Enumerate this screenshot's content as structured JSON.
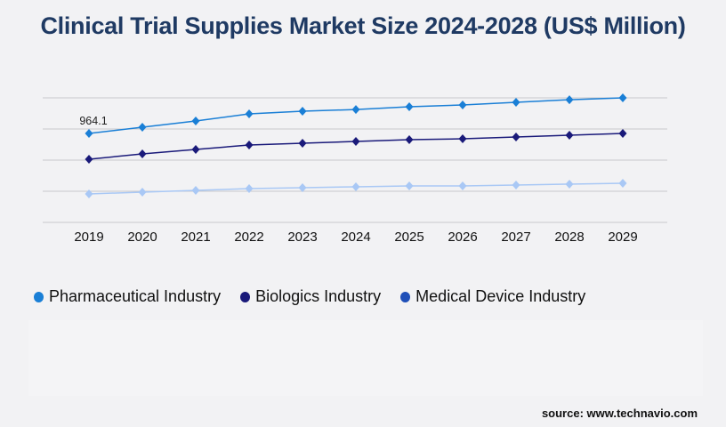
{
  "chart_data": {
    "type": "line",
    "title": "Clinical Trial Supplies Market Size 2024-2028 (US$ Million)",
    "x": [
      "2019",
      "2020",
      "2021",
      "2022",
      "2023",
      "2024",
      "2025",
      "2026",
      "2027",
      "2028",
      "2029"
    ],
    "ylim": [
      0,
      1350
    ],
    "grid": true,
    "legend_position": "bottom-left",
    "series": [
      {
        "name": "Pharmaceutical Industry",
        "color": "#1a7fd6",
        "legend_color": "#1a7fd6",
        "values": [
          964.1,
          1032,
          1099,
          1176,
          1205,
          1224,
          1253,
          1273,
          1302,
          1330,
          1350
        ]
      },
      {
        "name": "Biologics Industry",
        "color": "#1a1a7a",
        "legend_color": "#1a1a7a",
        "values": [
          685,
          742,
          791,
          839,
          858,
          877,
          897,
          906,
          926,
          945,
          964
        ]
      },
      {
        "name": "Medical Device Industry",
        "color": "#a9c8f5",
        "legend_color": "#1f4fb8",
        "values": [
          309,
          328,
          347,
          366,
          376,
          386,
          395,
          395,
          405,
          415,
          424
        ]
      }
    ],
    "annotations": [
      {
        "series": 0,
        "index": 0,
        "text": "964.1"
      }
    ]
  },
  "source": "source: www.technavio.com"
}
